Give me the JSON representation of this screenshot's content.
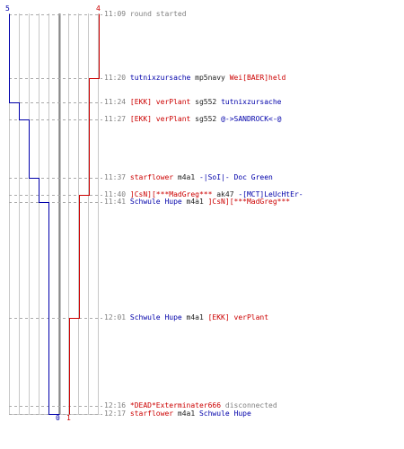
{
  "colors": {
    "blue": "#0000aa",
    "red": "#cc0000",
    "gray": "#808080",
    "dark": "#222222",
    "grid": "#c8c8c8",
    "center": "#888888"
  },
  "counts": {
    "blue_start": "5",
    "red_start": "4",
    "blue_end": "0",
    "red_end": "1"
  },
  "chart_data": {
    "type": "line",
    "x_unit": "players remaining",
    "series": [
      {
        "team": "blue",
        "values": [
          {
            "time": "11:09",
            "count": 5
          },
          {
            "time": "11:24",
            "count": 4
          },
          {
            "time": "11:27",
            "count": 3
          },
          {
            "time": "11:37",
            "count": 2
          },
          {
            "time": "11:41",
            "count": 1
          },
          {
            "time": "12:17",
            "count": 0
          }
        ]
      },
      {
        "team": "red",
        "values": [
          {
            "time": "11:09",
            "count": 4
          },
          {
            "time": "11:20",
            "count": 3
          },
          {
            "time": "11:40",
            "count": 2
          },
          {
            "time": "12:01",
            "count": 1
          },
          {
            "time": "12:17",
            "count": 1
          }
        ]
      }
    ]
  },
  "events": [
    {
      "time": "11:09",
      "parts": [
        {
          "t": "round started",
          "c": "gray"
        }
      ]
    },
    {
      "time": "11:20",
      "parts": [
        {
          "t": "tutnixzursache",
          "c": "blue"
        },
        {
          "t": " mp5navy ",
          "c": "dark"
        },
        {
          "t": "Wei[BAER]held",
          "c": "red"
        }
      ]
    },
    {
      "time": "11:24",
      "parts": [
        {
          "t": "[EKK] verPlant",
          "c": "red"
        },
        {
          "t": " sg552 ",
          "c": "dark"
        },
        {
          "t": "tutnixzursache",
          "c": "blue"
        }
      ]
    },
    {
      "time": "11:27",
      "parts": [
        {
          "t": "[EKK] verPlant",
          "c": "red"
        },
        {
          "t": " sg552 ",
          "c": "dark"
        },
        {
          "t": "@->SANDROCK<-@",
          "c": "blue"
        }
      ]
    },
    {
      "time": "11:37",
      "parts": [
        {
          "t": "starflower",
          "c": "red"
        },
        {
          "t": " m4a1 ",
          "c": "dark"
        },
        {
          "t": "-|SoI|- Doc Green",
          "c": "blue"
        }
      ]
    },
    {
      "time": "11:40",
      "parts": [
        {
          "t": "]CsN][***MadGreg***",
          "c": "red"
        },
        {
          "t": " ak47 ",
          "c": "dark"
        },
        {
          "t": "-[MCT]LeUcHtEr-",
          "c": "blue"
        }
      ]
    },
    {
      "time": "11:41",
      "parts": [
        {
          "t": "Schwule Hupe",
          "c": "blue"
        },
        {
          "t": " m4a1 ",
          "c": "dark"
        },
        {
          "t": "]CsN][***MadGreg***",
          "c": "red"
        }
      ]
    },
    {
      "time": "12:01",
      "parts": [
        {
          "t": "Schwule Hupe",
          "c": "blue"
        },
        {
          "t": " m4a1 ",
          "c": "dark"
        },
        {
          "t": "[EKK] verPlant",
          "c": "red"
        }
      ]
    },
    {
      "time": "12:16",
      "parts": [
        {
          "t": "*DEAD*Exterminater666",
          "c": "red"
        },
        {
          "t": " disconnected",
          "c": "gray"
        }
      ]
    },
    {
      "time": "12:17",
      "parts": [
        {
          "t": "starflower",
          "c": "red"
        },
        {
          "t": " m4a1 ",
          "c": "dark"
        },
        {
          "t": "Schwule Hupe",
          "c": "blue"
        }
      ]
    }
  ]
}
